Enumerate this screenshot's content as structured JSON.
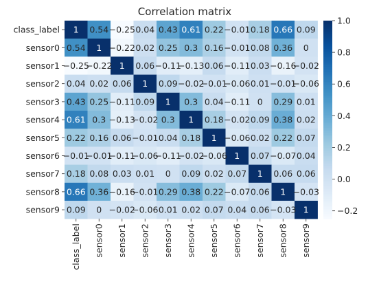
{
  "chart_data": {
    "type": "heatmap",
    "title": "Correlation matrix",
    "labels": [
      "class_label",
      "sensor0",
      "sensor1",
      "sensor2",
      "sensor3",
      "sensor4",
      "sensor5",
      "sensor6",
      "sensor7",
      "sensor8",
      "sensor9"
    ],
    "values": [
      [
        1,
        0.54,
        -0.25,
        0.04,
        0.43,
        0.61,
        0.22,
        -0.01,
        0.18,
        0.66,
        0.09
      ],
      [
        0.54,
        1,
        -0.22,
        0.02,
        0.25,
        0.3,
        0.16,
        -0.01,
        0.08,
        0.36,
        0
      ],
      [
        -0.25,
        -0.22,
        1,
        0.06,
        -0.11,
        -0.13,
        0.06,
        -0.11,
        0.03,
        -0.16,
        -0.02
      ],
      [
        0.04,
        0.02,
        0.06,
        1,
        0.09,
        -0.02,
        -0.01,
        -0.06,
        0.01,
        -0.01,
        -0.06
      ],
      [
        0.43,
        0.25,
        -0.11,
        0.09,
        1,
        0.3,
        0.04,
        -0.11,
        0,
        0.29,
        0.01
      ],
      [
        0.61,
        0.3,
        -0.13,
        -0.02,
        0.3,
        1,
        0.18,
        -0.02,
        0.09,
        0.38,
        0.02
      ],
      [
        0.22,
        0.16,
        0.06,
        -0.01,
        0.04,
        0.18,
        1,
        -0.06,
        0.02,
        0.22,
        0.07
      ],
      [
        -0.01,
        -0.01,
        -0.11,
        -0.06,
        -0.11,
        -0.02,
        -0.06,
        1,
        0.07,
        -0.07,
        0.04
      ],
      [
        0.18,
        0.08,
        0.03,
        0.01,
        0,
        0.09,
        0.02,
        0.07,
        1,
        0.06,
        0.06
      ],
      [
        0.66,
        0.36,
        -0.16,
        -0.01,
        0.29,
        0.38,
        0.22,
        -0.07,
        0.06,
        1,
        -0.03
      ],
      [
        0.09,
        0,
        -0.02,
        -0.06,
        0.01,
        0.02,
        0.07,
        0.04,
        0.06,
        -0.03,
        1
      ]
    ],
    "colorbar": {
      "vmin": -0.25,
      "vmax": 1,
      "ticks": [
        -0.2,
        0.0,
        0.2,
        0.4,
        0.6,
        0.8,
        1.0
      ],
      "tick_labels": [
        "−0.2",
        "0.0",
        "0.2",
        "0.4",
        "0.6",
        "0.8",
        "1.0"
      ]
    },
    "colormap": "Blues",
    "annotations": true
  }
}
